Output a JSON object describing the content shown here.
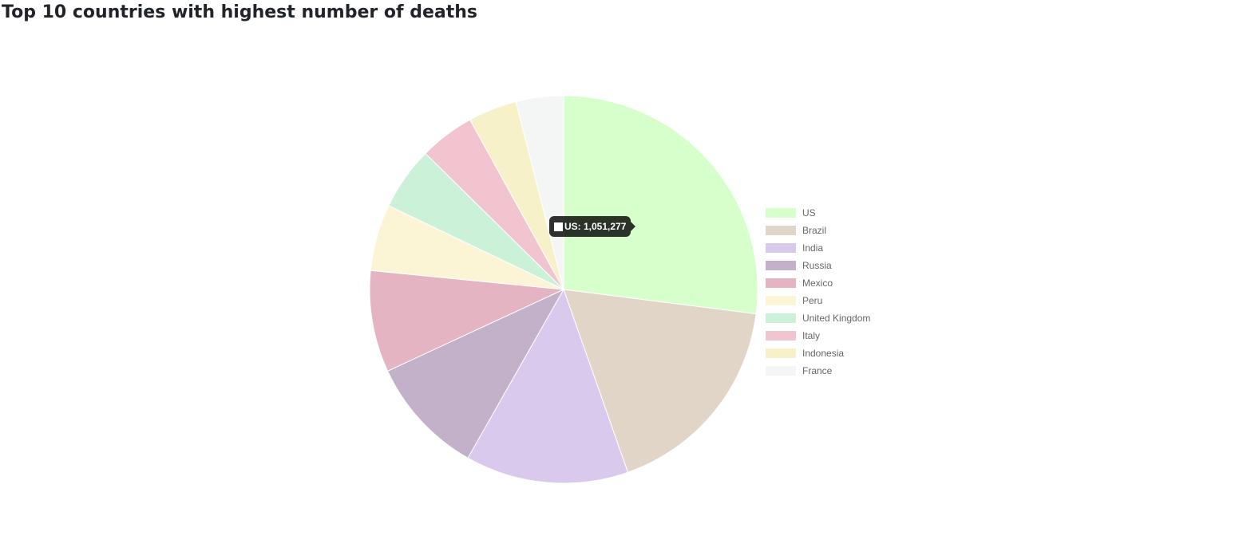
{
  "title": "Top 10 countries with highest number of deaths",
  "chart_data": {
    "type": "pie",
    "title": "Top 10 countries with highest number of deaths",
    "categories": [
      "US",
      "Brazil",
      "India",
      "Russia",
      "Mexico",
      "Peru",
      "United Kingdom",
      "Italy",
      "Indonesia",
      "France"
    ],
    "values": [
      1051277,
      685500,
      528900,
      384000,
      330000,
      216000,
      205000,
      179000,
      158000,
      154000
    ],
    "colors": [
      "#d6ffcc",
      "#e1d5c7",
      "#d9c9ec",
      "#c2b1c9",
      "#e5b4c2",
      "#fcf5d5",
      "#ccf1d9",
      "#f1c4cf",
      "#f6f1c9",
      "#f4f6f5"
    ],
    "legend_position": "right",
    "tooltip": {
      "category": "US",
      "text": "US: 1,051,277"
    }
  }
}
